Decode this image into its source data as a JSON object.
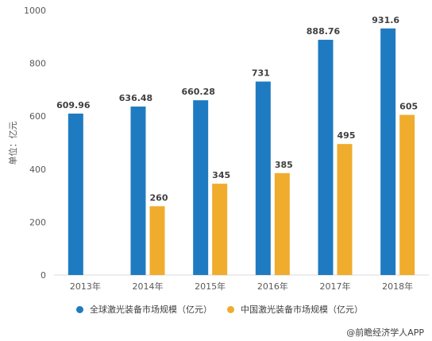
{
  "chart_data": {
    "type": "bar",
    "ylabel": "单位：亿元",
    "ylim": [
      0,
      1000
    ],
    "yticks": [
      "0",
      "200",
      "400",
      "600",
      "800",
      "1000"
    ],
    "categories": [
      "2013年",
      "2014年",
      "2015年",
      "2016年",
      "2017年",
      "2018年"
    ],
    "series": [
      {
        "name": "全球激光装备市场规模（亿元）",
        "color": "#1f7bc1",
        "values": [
          609.96,
          636.48,
          660.28,
          731,
          888.76,
          931.6
        ],
        "labels": [
          "609.96",
          "636.48",
          "660.28",
          "731",
          "888.76",
          "931.6"
        ]
      },
      {
        "name": "中国激光装备市场规模（亿元）",
        "color": "#f0ac2c",
        "values": [
          null,
          260,
          345,
          385,
          495,
          605
        ],
        "labels": [
          "",
          "260",
          "345",
          "385",
          "495",
          "605"
        ]
      }
    ],
    "grid": false,
    "legend_position": "bottom"
  },
  "source": "@前瞻经济学人APP"
}
